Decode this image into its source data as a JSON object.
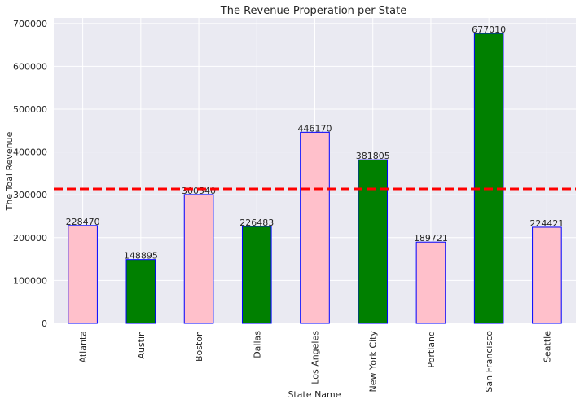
{
  "chart_data": {
    "type": "bar",
    "title": "The Revenue Properation per State",
    "xlabel": "State Name",
    "ylabel": "The Toal Revenue",
    "categories": [
      "Atlanta",
      "Austin",
      "Boston",
      "Dallas",
      "Los Angeles",
      "New York City",
      "Portland",
      "San Francisco",
      "Seattle"
    ],
    "values": [
      228470,
      148895,
      300540,
      226483,
      446170,
      381805,
      189721,
      677010,
      224421
    ],
    "bar_colors": [
      "#ffc0cb",
      "#008000",
      "#ffc0cb",
      "#008000",
      "#ffc0cb",
      "#008000",
      "#ffc0cb",
      "#008000",
      "#ffc0cb"
    ],
    "bar_edge_color": "#0000ff",
    "ylim": [
      0,
      713000
    ],
    "yticks": [
      0,
      100000,
      200000,
      300000,
      400000,
      500000,
      600000,
      700000
    ],
    "reference_line": {
      "value": 313724,
      "color": "#ff0000",
      "style": "dashed"
    },
    "grid": true,
    "background": "#eaeaf2"
  }
}
